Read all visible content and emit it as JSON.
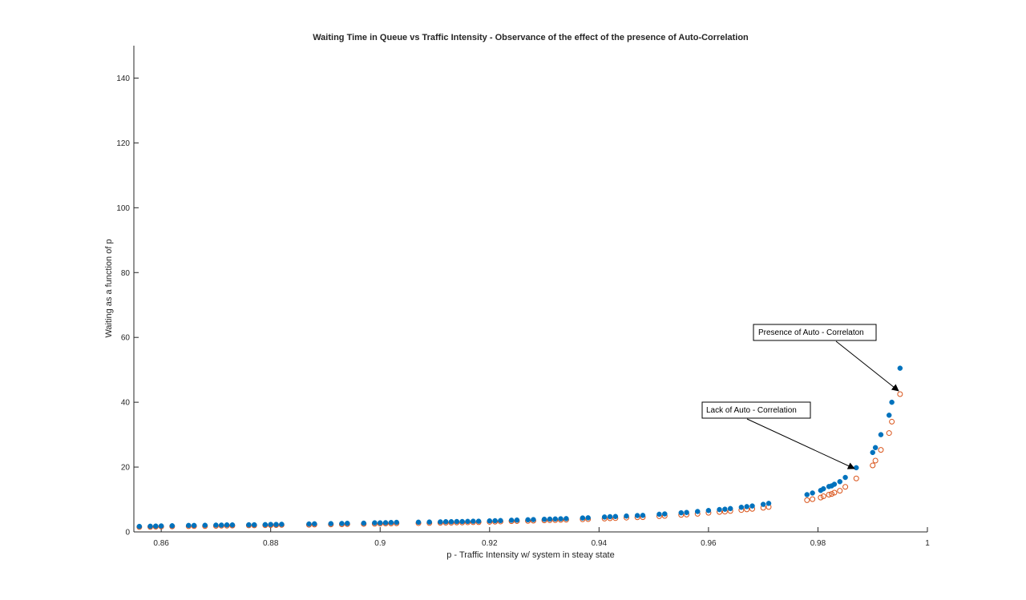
{
  "chart_data": {
    "type": "scatter",
    "title": "Waiting Time in Queue vs Traffic Intensity - Observance of the effect of the presence of Auto-Correlation",
    "xlabel": "p - Traffic Intensity w/ system in steay state",
    "ylabel": "Waiting as a function of p",
    "xlim": [
      0.855,
      1.0
    ],
    "ylim": [
      0,
      150
    ],
    "xticks": [
      0.86,
      0.88,
      0.9,
      0.92,
      0.94,
      0.96,
      0.98,
      1
    ],
    "xtick_labels": [
      "0.86",
      "0.88",
      "0.9",
      "0.92",
      "0.94",
      "0.96",
      "0.98",
      "1"
    ],
    "yticks": [
      0,
      20,
      40,
      60,
      80,
      100,
      120,
      140
    ],
    "ytick_labels": [
      "0",
      "20",
      "40",
      "60",
      "80",
      "100",
      "120",
      "140"
    ],
    "grid": false,
    "x": [
      0.856,
      0.858,
      0.859,
      0.86,
      0.862,
      0.865,
      0.866,
      0.868,
      0.87,
      0.871,
      0.872,
      0.873,
      0.876,
      0.877,
      0.879,
      0.88,
      0.881,
      0.882,
      0.887,
      0.888,
      0.891,
      0.893,
      0.894,
      0.897,
      0.899,
      0.9,
      0.901,
      0.902,
      0.903,
      0.907,
      0.909,
      0.911,
      0.912,
      0.913,
      0.914,
      0.915,
      0.916,
      0.917,
      0.918,
      0.92,
      0.921,
      0.922,
      0.924,
      0.925,
      0.927,
      0.928,
      0.93,
      0.931,
      0.932,
      0.933,
      0.934,
      0.937,
      0.938,
      0.941,
      0.942,
      0.943,
      0.945,
      0.947,
      0.948,
      0.951,
      0.952,
      0.955,
      0.956,
      0.958,
      0.96,
      0.962,
      0.963,
      0.964,
      0.966,
      0.967,
      0.968,
      0.97,
      0.971,
      0.978,
      0.979,
      0.9805,
      0.981,
      0.982,
      0.9825,
      0.983,
      0.984,
      0.985,
      0.987,
      0.99,
      0.9905,
      0.9915,
      0.993,
      0.9935,
      0.995
    ],
    "series": [
      {
        "name": "Presence of Auto - Correlaton",
        "color": "#0072bd",
        "marker": "filled-circle",
        "values": [
          1.7,
          1.75,
          1.8,
          1.85,
          1.9,
          2.0,
          2.0,
          2.05,
          2.1,
          2.1,
          2.15,
          2.15,
          2.2,
          2.2,
          2.25,
          2.3,
          2.3,
          2.35,
          2.45,
          2.5,
          2.55,
          2.6,
          2.65,
          2.7,
          2.8,
          2.8,
          2.85,
          2.9,
          2.95,
          3.0,
          3.05,
          3.1,
          3.15,
          3.15,
          3.2,
          3.2,
          3.25,
          3.3,
          3.3,
          3.4,
          3.45,
          3.5,
          3.6,
          3.65,
          3.75,
          3.8,
          3.9,
          3.95,
          4.0,
          4.05,
          4.1,
          4.3,
          4.35,
          4.6,
          4.7,
          4.75,
          4.9,
          5.05,
          5.1,
          5.45,
          5.55,
          5.9,
          6.0,
          6.3,
          6.6,
          6.9,
          7.0,
          7.2,
          7.6,
          7.8,
          8.0,
          8.5,
          8.8,
          11.5,
          12.0,
          12.8,
          13.3,
          14.0,
          14.2,
          14.7,
          15.5,
          16.8,
          19.8,
          24.5,
          26.0,
          30.0,
          36.0,
          40.0,
          50.5
        ]
      },
      {
        "name": "Lack of Auto - Correlation",
        "color": "#d95319",
        "marker": "open-circle",
        "values": [
          1.5,
          1.55,
          1.6,
          1.65,
          1.7,
          1.75,
          1.8,
          1.8,
          1.85,
          1.9,
          1.9,
          1.95,
          2.0,
          2.0,
          2.05,
          2.1,
          2.1,
          2.15,
          2.2,
          2.25,
          2.3,
          2.35,
          2.4,
          2.45,
          2.5,
          2.55,
          2.6,
          2.6,
          2.65,
          2.7,
          2.75,
          2.8,
          2.85,
          2.85,
          2.9,
          2.9,
          2.95,
          3.0,
          3.0,
          3.1,
          3.15,
          3.2,
          3.3,
          3.35,
          3.4,
          3.45,
          3.55,
          3.6,
          3.65,
          3.7,
          3.75,
          3.9,
          3.95,
          4.1,
          4.2,
          4.25,
          4.4,
          4.5,
          4.55,
          4.85,
          4.95,
          5.25,
          5.35,
          5.6,
          5.9,
          6.15,
          6.25,
          6.45,
          6.75,
          6.95,
          7.1,
          7.45,
          7.7,
          9.8,
          10.1,
          10.6,
          11.0,
          11.5,
          11.7,
          12.1,
          12.7,
          13.9,
          16.5,
          20.5,
          22.0,
          25.3,
          30.5,
          34.0,
          42.5
        ]
      }
    ],
    "annotations": [
      {
        "text": "Presence of Auto - Correlaton",
        "arrow_to": {
          "x": 0.995,
          "y": 43
        }
      },
      {
        "text": "Lack of Auto - Correlation",
        "arrow_to": {
          "x": 0.987,
          "y": 19
        }
      }
    ]
  }
}
